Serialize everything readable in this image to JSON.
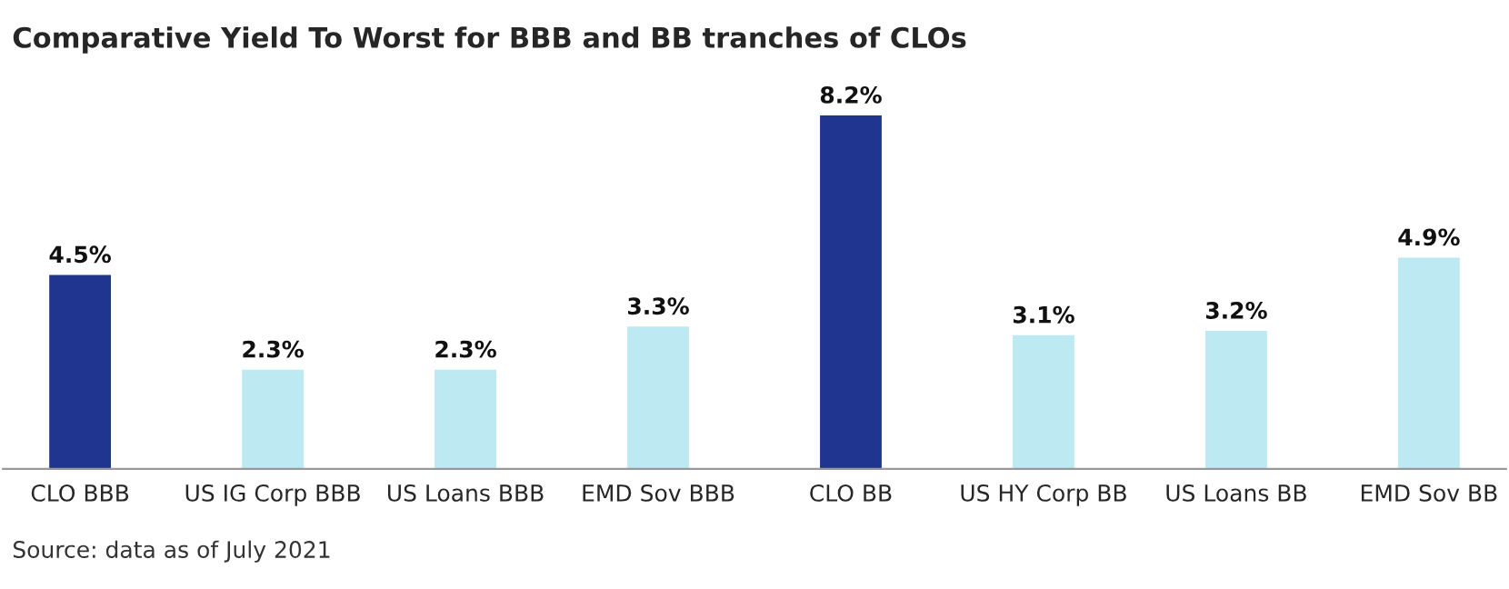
{
  "chart_data": {
    "type": "bar",
    "title": "Comparative Yield To Worst for BBB and BB tranches of CLOs",
    "categories": [
      "CLO BBB",
      "US IG Corp BBB",
      "US Loans BBB",
      "EMD Sov BBB",
      "CLO BB",
      "US HY Corp BB",
      "US Loans BB",
      "EMD Sov BB"
    ],
    "values": [
      4.5,
      2.3,
      2.3,
      3.3,
      8.2,
      3.1,
      3.2,
      4.9
    ],
    "value_labels": [
      "4.5%",
      "2.3%",
      "2.3%",
      "3.3%",
      "8.2%",
      "3.1%",
      "3.2%",
      "4.9%"
    ],
    "colors": [
      "#1f3590",
      "#bde9f2",
      "#bde9f2",
      "#bde9f2",
      "#1f3590",
      "#bde9f2",
      "#bde9f2",
      "#bde9f2"
    ],
    "tick_labels": "x",
    "grid": false,
    "legend": false,
    "annotations": [
      "Source: data as of July 2021"
    ]
  }
}
